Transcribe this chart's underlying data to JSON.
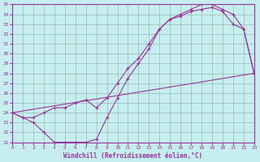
{
  "xlabel": "Windchill (Refroidissement éolien,°C)",
  "xlim": [
    0,
    23
  ],
  "ylim": [
    21,
    35
  ],
  "yticks": [
    21,
    22,
    23,
    24,
    25,
    26,
    27,
    28,
    29,
    30,
    31,
    32,
    33,
    34,
    35
  ],
  "xticks": [
    0,
    1,
    2,
    3,
    4,
    5,
    6,
    7,
    8,
    9,
    10,
    11,
    12,
    13,
    14,
    15,
    16,
    17,
    18,
    19,
    20,
    21,
    22,
    23
  ],
  "bg_color": "#c6eeee",
  "line_color": "#993399",
  "grid_color": "#9ab8b8",
  "line1_x": [
    0,
    1,
    2,
    3,
    4,
    5,
    6,
    7,
    8,
    9,
    10,
    11,
    12,
    13,
    14,
    15,
    16,
    17,
    18,
    19,
    20,
    21,
    22,
    23
  ],
  "line1_y": [
    24.0,
    23.5,
    23.5,
    24.0,
    24.5,
    24.5,
    25.0,
    25.3,
    24.5,
    25.5,
    27.0,
    28.5,
    29.5,
    31.0,
    32.5,
    33.5,
    33.8,
    34.3,
    34.5,
    34.7,
    34.3,
    33.0,
    32.5,
    28.0
  ],
  "line2_x": [
    0,
    1,
    2,
    3,
    4,
    5,
    6,
    7,
    8,
    9,
    10,
    11,
    12,
    13,
    14,
    15,
    16,
    17,
    18,
    19,
    20,
    21,
    22,
    23
  ],
  "line2_y": [
    24.0,
    23.5,
    23.0,
    22.0,
    21.0,
    21.0,
    21.0,
    21.0,
    21.3,
    23.5,
    25.5,
    27.5,
    29.0,
    30.5,
    32.5,
    33.5,
    34.0,
    34.5,
    35.0,
    35.0,
    34.5,
    34.0,
    32.5,
    28.0
  ],
  "line3_x": [
    0,
    23
  ],
  "line3_y": [
    24.0,
    28.0
  ]
}
